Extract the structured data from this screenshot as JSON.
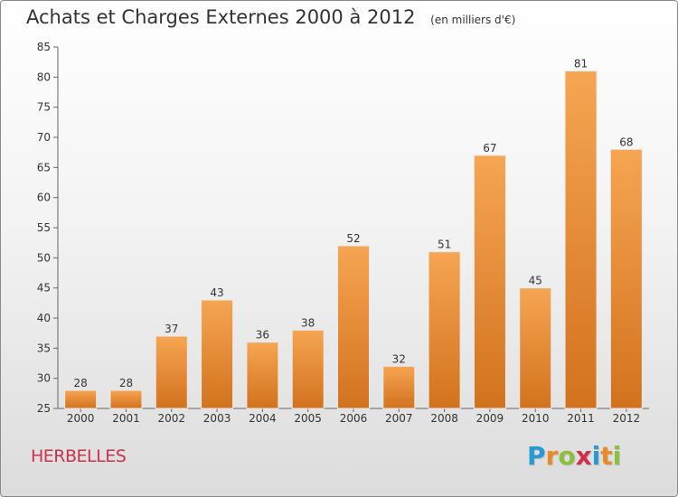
{
  "title": "Achats et Charges Externes 2000 à 2012",
  "unit_label": "(en milliers d'€)",
  "commune": "HERBELLES",
  "logo": {
    "text": "Proxiti",
    "letters": [
      {
        "ch": "P",
        "color": "#2a9ad6"
      },
      {
        "ch": "r",
        "color": "#e8892a"
      },
      {
        "ch": "o",
        "color": "#8bbf3c"
      },
      {
        "ch": "x",
        "color": "#d0304a"
      },
      {
        "ch": "i",
        "color": "#2a9ad6"
      },
      {
        "ch": "t",
        "color": "#e8892a"
      },
      {
        "ch": "i",
        "color": "#8bbf3c"
      }
    ]
  },
  "colors": {
    "bar_top": "#f6a552",
    "bar_bottom": "#d2721e",
    "commune": "#d0304a"
  },
  "chart_data": {
    "type": "bar",
    "title": "Achats et Charges Externes 2000 à 2012",
    "subtitle": "(en milliers d'€)",
    "xlabel": "",
    "ylabel": "",
    "categories": [
      "2000",
      "2001",
      "2002",
      "2003",
      "2004",
      "2005",
      "2006",
      "2007",
      "2008",
      "2009",
      "2010",
      "2011",
      "2012"
    ],
    "values": [
      28,
      28,
      37,
      43,
      36,
      38,
      52,
      32,
      51,
      67,
      45,
      81,
      68
    ],
    "ylim": [
      25,
      85
    ],
    "yticks": [
      25,
      30,
      35,
      40,
      45,
      50,
      55,
      60,
      65,
      70,
      75,
      80,
      85
    ],
    "grid": false,
    "legend": "none",
    "data_labels": true
  }
}
